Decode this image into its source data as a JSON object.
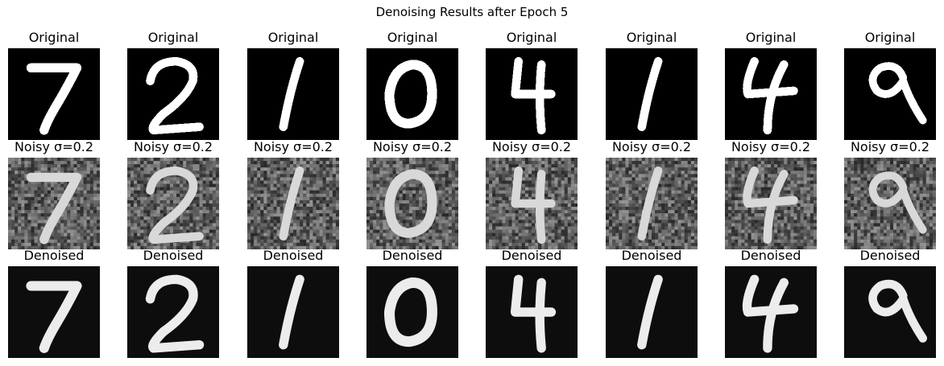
{
  "suptitle": "Denoising Results after Epoch 5",
  "row_titles": {
    "original": "Original",
    "noisy": "Noisy σ=0.2",
    "denoised": "Denoised"
  },
  "digits": [
    "7",
    "2",
    "1",
    "0",
    "4",
    "1",
    "4",
    "9"
  ],
  "noise_sigma": 0.2,
  "colors": {
    "background": "#ffffff",
    "digit_stroke": "#ffffff",
    "original_bg": "#000000",
    "noisy_bg": "#5a5a5a",
    "denoised_bg": "#0d0d0d"
  }
}
